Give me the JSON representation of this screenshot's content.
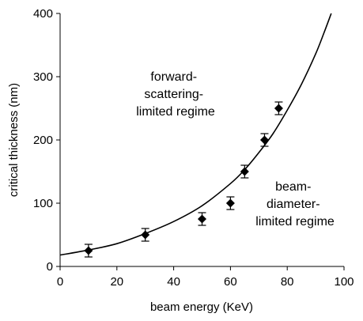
{
  "chart_data": {
    "type": "scatter",
    "xlabel": "beam energy (KeV)",
    "ylabel": "critical thickness (nm)",
    "xlim": [
      0,
      100
    ],
    "ylim": [
      0,
      400
    ],
    "x_ticks": [
      0,
      20,
      40,
      60,
      80,
      100
    ],
    "y_ticks": [
      0,
      100,
      200,
      300,
      400
    ],
    "x_tick_labels": [
      "0",
      "20",
      "40",
      "60",
      "80",
      "100"
    ],
    "y_tick_labels": [
      "0",
      "100",
      "200",
      "300",
      "400"
    ],
    "grid": false,
    "legend": "none",
    "points": [
      {
        "x": 10,
        "y": 25,
        "err": 10
      },
      {
        "x": 30,
        "y": 50,
        "err": 10
      },
      {
        "x": 50,
        "y": 75,
        "err": 10
      },
      {
        "x": 60,
        "y": 100,
        "err": 10
      },
      {
        "x": 65,
        "y": 150,
        "err": 10
      },
      {
        "x": 72,
        "y": 200,
        "err": 10
      },
      {
        "x": 77,
        "y": 250,
        "err": 10
      }
    ],
    "curve": {
      "x": [
        0,
        10,
        20,
        30,
        40,
        50,
        60,
        65,
        70,
        75,
        80,
        85,
        90,
        93,
        95.5
      ],
      "y": [
        18,
        26,
        36,
        52,
        71,
        96,
        131,
        153,
        180,
        210,
        247,
        288,
        336,
        370,
        400
      ]
    },
    "annotations": [
      {
        "name": "forward-scattering-regime",
        "lines": [
          "forward-",
          "scattering-",
          "limited regime"
        ]
      },
      {
        "name": "beam-diameter-regime",
        "lines": [
          "beam-",
          "diameter-",
          "limited regime"
        ]
      }
    ],
    "marker_color": "#000000",
    "curve_color": "#000000"
  }
}
